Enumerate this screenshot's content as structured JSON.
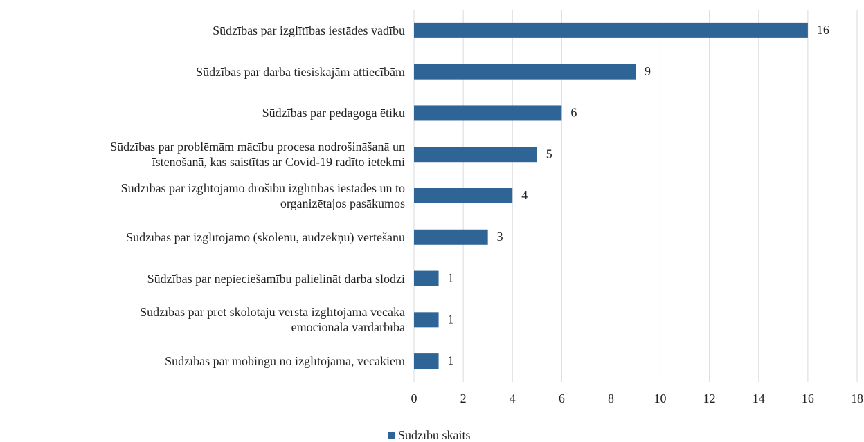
{
  "chart_data": {
    "type": "hbar",
    "categories": [
      "Sūdzības par izglītības iestādes vadību",
      "Sūdzības par darba tiesiskajām attiecībām",
      "Sūdzības par pedagoga ētiku",
      "Sūdzības par problēmām mācību procesa nodrošināšanā un\nīstenošanā, kas saistītas ar Covid-19 radīto ietekmi",
      "Sūdzības par izglītojamo drošību izglītības iestādēs un to\norganizētajos pasākumos",
      "Sūdzības par izglītojamo (skolēnu, audzēkņu) vērtēšanu",
      "Sūdzības par nepieciešamību palielināt darba slodzi",
      "Sūdzības par pret skolotāju vērsta izglītojamā vecāka\nemocionāla vardarbība",
      "Sūdzības par mobingu no izglītojamā, vecākiem"
    ],
    "series": [
      {
        "name": "Sūdzību skaits",
        "color": "#2e6496",
        "values": [
          16,
          9,
          6,
          5,
          4,
          3,
          1,
          1,
          1
        ]
      }
    ],
    "xlim": [
      0,
      18
    ],
    "xticks": [
      0,
      2,
      4,
      6,
      8,
      10,
      12,
      14,
      16,
      18
    ],
    "grid": true,
    "legend": "bottom"
  }
}
